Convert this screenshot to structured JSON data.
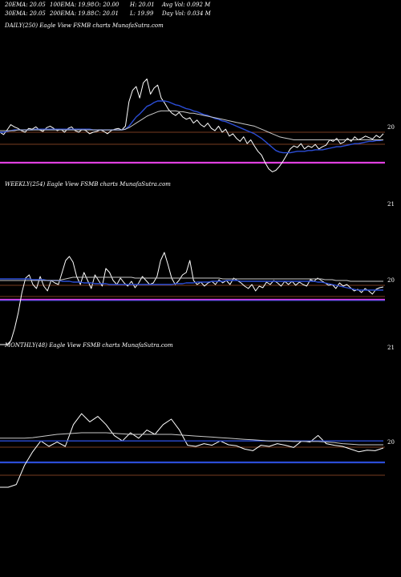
{
  "header": {
    "r1c1": "20EMA: 20.05",
    "r1c2": "100EMA: 19.98",
    "r1c3": "O: 20.00",
    "r1c4": "H: 20.01",
    "r1c5": "Avg Vol: 0.092  M",
    "r2c1": "30EMA: 20.05",
    "r2c2": "200EMA: 19.88",
    "r2c3": "C: 20.01",
    "r2c4": "L: 19.99",
    "r2c5": "Day Vol: 0.034  M"
  },
  "colors": {
    "background": "#000000",
    "price": "#ffffff",
    "ema_fast": "#2b4dd6",
    "ema_slow": "#c8c8c8",
    "reference_line": "#a0522d",
    "magenta_line": "#e040e0"
  },
  "chart_data": [
    {
      "type": "line",
      "title": "DAILY(250) Eagle  View  FSMB charts MunafaSutra.com",
      "y_tick_labels": [
        "20",
        "21"
      ],
      "series": [
        {
          "values": [
            20.0,
            20.03,
            19.97,
            19.9,
            19.93,
            19.95,
            19.98,
            20.0,
            19.95,
            19.96,
            19.93,
            19.97,
            19.99,
            19.94,
            19.92,
            19.95,
            19.98,
            19.96,
            20.0,
            19.95,
            19.93,
            19.98,
            20.0,
            19.96,
            19.98,
            20.02,
            20.0,
            19.99,
            19.97,
            19.99,
            20.02,
            19.98,
            19.96,
            19.95,
            19.97,
            19.92,
            19.6,
            19.45,
            19.4,
            19.55,
            19.35,
            19.3,
            19.5,
            19.42,
            19.38,
            19.55,
            19.62,
            19.7,
            19.75,
            19.78,
            19.74,
            19.8,
            19.83,
            19.81,
            19.88,
            19.84,
            19.9,
            19.93,
            19.88,
            19.95,
            19.98,
            19.92,
            20.0,
            19.96,
            20.05,
            20.02,
            20.08,
            20.12,
            20.06,
            20.15,
            20.1,
            20.18,
            20.25,
            20.3,
            20.4,
            20.48,
            20.52,
            20.5,
            20.45,
            20.38,
            20.3,
            20.22,
            20.18,
            20.2,
            20.15,
            20.22,
            20.18,
            20.2,
            20.16,
            20.22,
            20.19,
            20.17,
            20.1,
            20.12,
            20.08,
            20.15,
            20.13,
            20.08,
            20.12,
            20.06,
            20.1,
            20.08,
            20.05,
            20.07,
            20.09,
            20.04,
            20.07,
            20.02
          ]
        },
        {
          "values": [
            20.0,
            20.0,
            19.99,
            19.98,
            19.97,
            19.97,
            19.97,
            19.97,
            19.97,
            19.97,
            19.96,
            19.96,
            19.96,
            19.96,
            19.96,
            19.96,
            19.96,
            19.96,
            19.96,
            19.96,
            19.96,
            19.96,
            19.96,
            19.96,
            19.96,
            19.96,
            19.97,
            19.97,
            19.97,
            19.97,
            19.97,
            19.97,
            19.97,
            19.97,
            19.97,
            19.96,
            19.92,
            19.86,
            19.8,
            19.76,
            19.71,
            19.66,
            19.64,
            19.61,
            19.59,
            19.59,
            19.59,
            19.6,
            19.62,
            19.64,
            19.65,
            19.67,
            19.69,
            19.7,
            19.72,
            19.73,
            19.75,
            19.77,
            19.78,
            19.8,
            19.82,
            19.83,
            19.85,
            19.86,
            19.88,
            19.9,
            19.92,
            19.94,
            19.96,
            19.98,
            20.0,
            20.02,
            20.05,
            20.08,
            20.12,
            20.16,
            20.2,
            20.24,
            20.26,
            20.27,
            20.27,
            20.27,
            20.26,
            20.25,
            20.25,
            20.25,
            20.24,
            20.24,
            20.23,
            20.23,
            20.23,
            20.22,
            20.21,
            20.2,
            20.19,
            20.19,
            20.18,
            20.17,
            20.16,
            20.15,
            20.15,
            20.14,
            20.13,
            20.12,
            20.12,
            20.11,
            20.11,
            20.1
          ]
        },
        {
          "values": [
            19.98,
            19.98,
            19.98,
            19.98,
            19.98,
            19.97,
            19.97,
            19.97,
            19.97,
            19.97,
            19.97,
            19.97,
            19.97,
            19.97,
            19.97,
            19.97,
            19.97,
            19.97,
            19.97,
            19.97,
            19.97,
            19.97,
            19.97,
            19.97,
            19.97,
            19.97,
            19.97,
            19.97,
            19.97,
            19.97,
            19.97,
            19.97,
            19.97,
            19.97,
            19.97,
            19.96,
            19.94,
            19.91,
            19.88,
            19.85,
            19.82,
            19.79,
            19.77,
            19.75,
            19.73,
            19.72,
            19.72,
            19.72,
            19.72,
            19.72,
            19.73,
            19.73,
            19.74,
            19.75,
            19.75,
            19.76,
            19.77,
            19.78,
            19.79,
            19.8,
            19.81,
            19.82,
            19.83,
            19.84,
            19.85,
            19.86,
            19.87,
            19.88,
            19.89,
            19.9,
            19.91,
            19.92,
            19.94,
            19.96,
            19.98,
            20.0,
            20.02,
            20.04,
            20.06,
            20.07,
            20.08,
            20.09,
            20.1,
            20.1,
            20.1,
            20.1,
            20.1,
            20.1,
            20.1,
            20.1,
            20.1,
            20.1,
            20.1,
            20.1,
            20.1,
            20.1,
            20.1,
            20.1,
            20.1,
            20.1,
            20.1,
            20.1,
            20.1,
            20.1,
            20.1,
            20.1,
            20.1,
            20.1
          ]
        }
      ]
    },
    {
      "type": "line",
      "title": "WEEKLY(254) Eagle  View  FSMB charts MunafaSutra.com",
      "y_tick_labels": [
        "20",
        "21"
      ],
      "series": [
        {
          "values": [
            21.25,
            21.05,
            20.9,
            20.7,
            20.55,
            20.35,
            20.1,
            19.92,
            19.88,
            20.0,
            20.05,
            19.9,
            20.02,
            20.08,
            19.95,
            19.98,
            20.0,
            19.85,
            19.7,
            19.65,
            19.72,
            19.9,
            20.0,
            19.85,
            19.95,
            20.05,
            19.88,
            19.95,
            20.02,
            19.8,
            19.85,
            19.95,
            20.0,
            19.92,
            19.98,
            20.02,
            19.96,
            20.04,
            19.98,
            19.9,
            19.95,
            20.0,
            19.98,
            19.9,
            19.7,
            19.6,
            19.75,
            19.92,
            20.0,
            19.95,
            19.88,
            19.85,
            19.7,
            19.95,
            20.0,
            19.97,
            20.02,
            19.98,
            19.96,
            20.0,
            19.94,
            19.98,
            19.95,
            20.0,
            19.92,
            19.95,
            19.98,
            20.02,
            20.05,
            20.0,
            20.08,
            20.02,
            20.04,
            19.97,
            20.0,
            19.95,
            19.98,
            20.02,
            19.96,
            20.0,
            19.96,
            20.01,
            19.97,
            20.0,
            20.02,
            19.94,
            19.96,
            19.92,
            19.95,
            19.98,
            20.01,
            20.0,
            20.05,
            19.98,
            20.02,
            20.0,
            20.04,
            20.08,
            20.06,
            20.1,
            20.05,
            20.08,
            20.12,
            20.06,
            20.04,
            20.03
          ]
        },
        {
          "values": [
            19.93,
            19.93,
            19.93,
            19.93,
            19.93,
            19.93,
            19.93,
            19.93,
            19.93,
            19.94,
            19.94,
            19.94,
            19.94,
            19.95,
            19.95,
            19.95,
            19.95,
            19.96,
            19.96,
            19.96,
            19.97,
            19.97,
            19.97,
            19.98,
            19.98,
            19.98,
            19.99,
            19.99,
            19.99,
            19.99,
            20.0,
            20.0,
            20.0,
            20.0,
            20.0,
            20.0,
            20.0,
            20.0,
            20.0,
            20.0,
            20.0,
            20.0,
            20.0,
            20.0,
            20.0,
            20.0,
            20.0,
            20.0,
            19.99,
            19.99,
            19.99,
            19.98,
            19.98,
            19.98,
            19.97,
            19.97,
            19.97,
            19.97,
            19.96,
            19.96,
            19.96,
            19.96,
            19.95,
            19.95,
            19.95,
            19.95,
            19.96,
            19.96,
            19.96,
            19.96,
            19.96,
            19.96,
            19.96,
            19.96,
            19.96,
            19.96,
            19.96,
            19.96,
            19.96,
            19.96,
            19.96,
            19.96,
            19.96,
            19.96,
            19.96,
            19.96,
            19.96,
            19.97,
            19.97,
            19.98,
            19.99,
            20.0,
            20.01,
            20.02,
            20.03,
            20.04,
            20.05,
            20.06,
            20.07,
            20.07,
            20.07,
            20.07,
            20.07,
            20.07,
            20.07,
            20.07
          ]
        },
        {
          "values": [
            19.95,
            19.95,
            19.95,
            19.95,
            19.95,
            19.95,
            19.95,
            19.95,
            19.95,
            19.95,
            19.95,
            19.95,
            19.95,
            19.95,
            19.95,
            19.95,
            19.95,
            19.94,
            19.93,
            19.92,
            19.91,
            19.91,
            19.91,
            19.91,
            19.91,
            19.91,
            19.91,
            19.91,
            19.91,
            19.91,
            19.91,
            19.91,
            19.91,
            19.91,
            19.91,
            19.91,
            19.91,
            19.92,
            19.92,
            19.92,
            19.92,
            19.92,
            19.92,
            19.92,
            19.92,
            19.92,
            19.92,
            19.92,
            19.92,
            19.92,
            19.92,
            19.92,
            19.92,
            19.92,
            19.92,
            19.92,
            19.92,
            19.92,
            19.92,
            19.92,
            19.92,
            19.93,
            19.93,
            19.93,
            19.93,
            19.93,
            19.93,
            19.93,
            19.93,
            19.93,
            19.93,
            19.93,
            19.93,
            19.93,
            19.93,
            19.93,
            19.93,
            19.93,
            19.93,
            19.93,
            19.93,
            19.93,
            19.93,
            19.93,
            19.93,
            19.93,
            19.93,
            19.93,
            19.93,
            19.94,
            19.94,
            19.94,
            19.95,
            19.95,
            19.95,
            19.95,
            19.96,
            19.96,
            19.96,
            19.96,
            19.96,
            19.96,
            19.96,
            19.96,
            19.96,
            19.96
          ]
        }
      ]
    },
    {
      "type": "line",
      "title": "MONTHLY(48) Eagle  View  FSMB charts MunafaSutra.com",
      "y_tick_labels": [
        "20",
        "21"
      ],
      "series": [
        {
          "values": [
            20.75,
            20.75,
            20.7,
            20.35,
            20.1,
            19.9,
            20.0,
            19.92,
            20.0,
            19.6,
            19.4,
            19.55,
            19.45,
            19.6,
            19.8,
            19.9,
            19.75,
            19.85,
            19.7,
            19.78,
            19.6,
            19.5,
            19.7,
            19.98,
            20.0,
            19.95,
            19.98,
            19.9,
            19.97,
            19.99,
            20.05,
            20.08,
            19.98,
            20.0,
            19.95,
            19.98,
            20.02,
            19.9,
            19.92,
            19.8,
            19.95,
            19.98,
            20.0,
            20.05,
            20.1,
            20.07,
            20.08,
            20.03
          ]
        },
        {
          "values": [
            19.9,
            19.9,
            19.9,
            19.9,
            19.9,
            19.9,
            19.9,
            19.9,
            19.9,
            19.9,
            19.9,
            19.9,
            19.9,
            19.9,
            19.9,
            19.9,
            19.9,
            19.9,
            19.9,
            19.9,
            19.9,
            19.9,
            19.9,
            19.9,
            19.9,
            19.9,
            19.9,
            19.9,
            19.9,
            19.9,
            19.9,
            19.9,
            19.9,
            19.9,
            19.9,
            19.9,
            19.9,
            19.9,
            19.9,
            19.9,
            19.9,
            19.9,
            19.9,
            19.9,
            19.9,
            19.9,
            19.9,
            19.9
          ]
        },
        {
          "values": [
            19.85,
            19.85,
            19.85,
            19.85,
            19.84,
            19.82,
            19.8,
            19.78,
            19.77,
            19.76,
            19.75,
            19.75,
            19.75,
            19.75,
            19.76,
            19.77,
            19.78,
            19.78,
            19.78,
            19.78,
            19.78,
            19.78,
            19.79,
            19.8,
            19.81,
            19.82,
            19.83,
            19.84,
            19.85,
            19.86,
            19.87,
            19.88,
            19.89,
            19.9,
            19.9,
            19.9,
            19.91,
            19.91,
            19.91,
            19.91,
            19.92,
            19.93,
            19.95,
            19.96,
            19.97,
            19.97,
            19.97,
            19.97
          ]
        }
      ]
    }
  ]
}
